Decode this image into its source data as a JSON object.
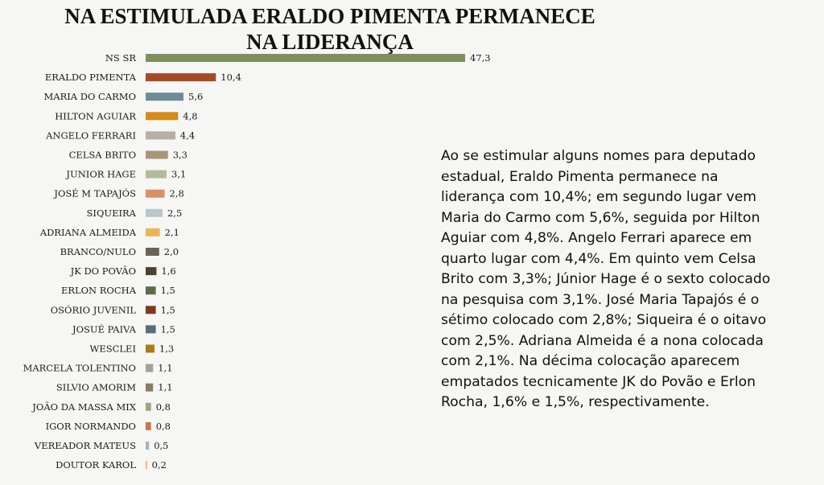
{
  "title": "NA ESTIMULADA ERALDO PIMENTA PERMANECE NA LIDERANÇA",
  "description": "Ao se estimular alguns nomes para deputado estadual, Eraldo Pimenta permanece na liderança com 10,4%; em segundo lugar vem Maria do Carmo com 5,6%, seguida por Hilton Aguiar com 4,8%. Angelo Ferrari aparece em quarto lugar com 4,4%. Em quinto vem Celsa Brito com 3,3%; Júnior Hage é o sexto colocado na pesquisa com 3,1%. José Maria Tapajós é o sétimo colocado com 2,8%; Siqueira é o oitavo com 2,5%. Adriana Almeida é a nona colocada com 2,1%. Na décima colocação aparecem empatados tecnicamente JK do Povão e Erlon Rocha, 1,6% e 1,5%, respectivamente.",
  "chart_data": {
    "type": "bar",
    "orientation": "horizontal",
    "title": "NA ESTIMULADA ERALDO PIMENTA PERMANECE NA LIDERANÇA",
    "xlim": [
      0,
      47.3
    ],
    "grid": false,
    "legend": "none",
    "categories": [
      "NS SR",
      "ERALDO PIMENTA",
      "MARIA DO CARMO",
      "HILTON AGUIAR",
      "ANGELO FERRARI",
      "CELSA BRITO",
      "JUNIOR HAGE",
      "JOSÉ M TAPAJÓS",
      "SIQUEIRA",
      "ADRIANA ALMEIDA",
      "BRANCO/NULO",
      "JK DO POVÃO",
      "ERLON ROCHA",
      "OSÓRIO JUVENIL",
      "JOSUÉ PAIVA",
      "WESCLEI",
      "MARCELA TOLENTINO",
      "SILVIO AMORIM",
      "JOÃO DA MASSA MIX",
      "IGOR NORMANDO",
      "VEREADOR MATEUS",
      "DOUTOR KAROL"
    ],
    "values": [
      47.3,
      10.4,
      5.6,
      4.8,
      4.4,
      3.3,
      3.1,
      2.8,
      2.5,
      2.1,
      2.0,
      1.6,
      1.5,
      1.5,
      1.5,
      1.3,
      1.1,
      1.1,
      0.8,
      0.8,
      0.5,
      0.2
    ],
    "value_labels": [
      "47,3",
      "10,4",
      "5,6",
      "4,8",
      "4,4",
      "3,3",
      "3,1",
      "2,8",
      "2,5",
      "2,1",
      "2,0",
      "1,6",
      "1,5",
      "1,5",
      "1,5",
      "1,3",
      "1,1",
      "1,1",
      "0,8",
      "0,8",
      "0,5",
      "0,2"
    ],
    "colors": [
      "#7f8e5f",
      "#a64a26",
      "#6e8c97",
      "#d48b1a",
      "#b5afa5",
      "#a99676",
      "#b4bb9a",
      "#d99065",
      "#b8c7cc",
      "#eab55a",
      "#6b6256",
      "#4d4132",
      "#5f6b49",
      "#7d3b1d",
      "#556e7a",
      "#b07a12",
      "#a69f93",
      "#8c7d61",
      "#9ea585",
      "#d07548",
      "#a3b6bd",
      "#e8b24a"
    ]
  }
}
